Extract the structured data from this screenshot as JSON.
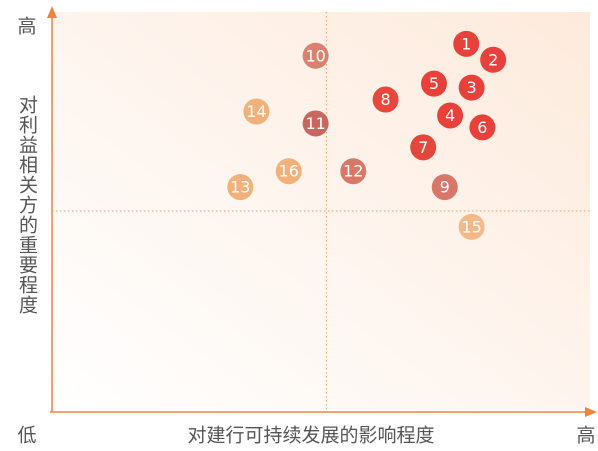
{
  "chart_data": {
    "type": "scatter",
    "y_axis_label": "对利益相关方的重要程度",
    "x_axis_label": "对建行可持续发展的影响程度",
    "y_high_label": "高",
    "origin_label": "低",
    "x_high_label": "高",
    "xlim": [
      0,
      100
    ],
    "ylim": [
      0,
      100
    ],
    "dividers": {
      "x": 51,
      "y": 50
    },
    "point_labels": [
      "1",
      "2",
      "3",
      "4",
      "5",
      "6",
      "7",
      "8",
      "9",
      "10",
      "11",
      "12",
      "13",
      "14",
      "15",
      "16"
    ],
    "x": [
      77,
      82,
      78,
      74,
      71,
      80,
      69,
      62,
      73,
      49,
      49,
      56,
      35,
      38,
      78,
      44
    ],
    "values": [
      92,
      88,
      81,
      74,
      82,
      71,
      66,
      78,
      56,
      89,
      72,
      60,
      56,
      75,
      46,
      60
    ],
    "colors": [
      "#e8403a",
      "#e8403a",
      "#e8403a",
      "#e8403a",
      "#e8403a",
      "#e8403a",
      "#e4463b",
      "#e8473d",
      "#d8766a",
      "#d98272",
      "#c9665e",
      "#d87866",
      "#f2b07a",
      "#f2b07a",
      "#f5b88a",
      "#f2b07a"
    ]
  }
}
